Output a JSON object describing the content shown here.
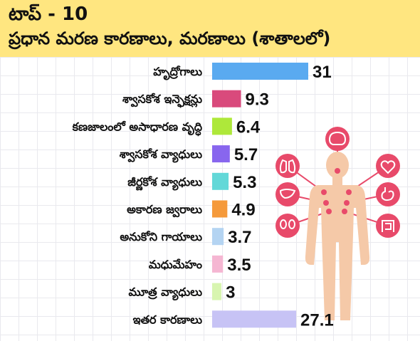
{
  "header": {
    "title": "టాప్ - 10",
    "subtitle": "ప్రధాన మరణ కారణాలు, మరణాలు (శాతాలలో)",
    "bg_color": "#ffe680"
  },
  "chart_data": {
    "type": "bar",
    "orientation": "horizontal",
    "categories": [
      "హృద్రోగాలు",
      "శ్వాసకోశ ఇన్ఫెక్షన్లు",
      "కణజాలంలో అసాధారణ వృద్ధి",
      "శ్వాసకోశ వ్యాధులు",
      "జీర్ణకోశ వ్యాధులు",
      "అకారణ జ్వరాలు",
      "అనుకోని గాయాలు",
      "మధుమేహం",
      "మూత్ర వ్యాధులు",
      "ఇతర కారణాలు"
    ],
    "values": [
      31,
      9.3,
      6.4,
      5.7,
      5.3,
      4.9,
      3.7,
      3.5,
      3,
      27.1
    ],
    "value_labels": [
      "31",
      "9.3",
      "6.4",
      "5.7",
      "5.3",
      "4.9",
      "3.7",
      "3.5",
      "3",
      "27.1"
    ],
    "colors": [
      "#5aaaf0",
      "#d94a7c",
      "#aee83a",
      "#8866ee",
      "#63d8d8",
      "#f59a3b",
      "#b4d4f2",
      "#f5b6d2",
      "#d8f5b0",
      "#c7c3f5"
    ],
    "grid": true,
    "xlim": [
      0,
      31
    ]
  },
  "illustration": {
    "icons": [
      "brain-icon",
      "lungs-icon",
      "heart-icon",
      "liver-icon",
      "stomach-icon",
      "kidneys-icon",
      "intestines-icon"
    ],
    "body_color": "#f5c9a8",
    "accent_color": "#e84a6a"
  }
}
